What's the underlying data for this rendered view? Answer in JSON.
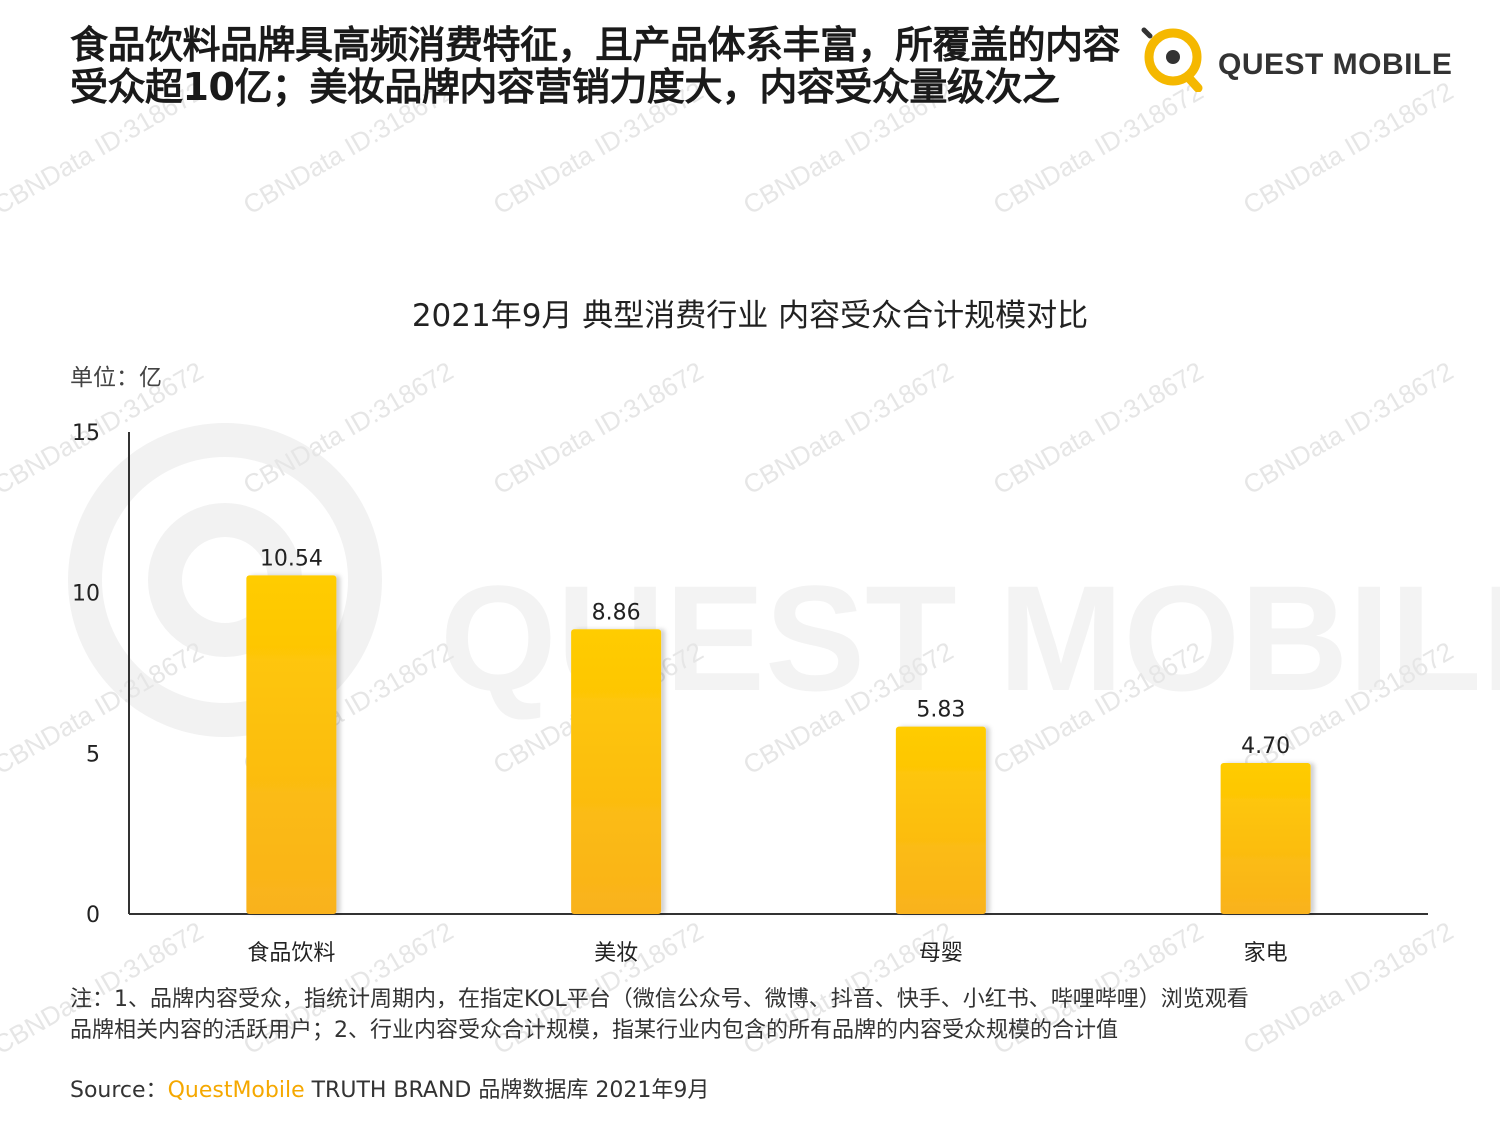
{
  "headline": {
    "line1": "食品饮料品牌具高频消费特征，且产品体系丰富，所覆盖的内容",
    "line2": "受众超10亿；美妆品牌内容营销力度大，内容受众量级次之"
  },
  "logo": {
    "text": "QUEST MOBILE",
    "accent_color": "#f5b800"
  },
  "watermark": {
    "text": "CBNData ID:318672",
    "background_text": "QUEST MOBILE"
  },
  "chart_data": {
    "type": "bar",
    "title": "2021年9月 典型消费行业 内容受众合计规模对比",
    "unit": "单位：亿",
    "categories": [
      "食品饮料",
      "美妆",
      "母婴",
      "家电"
    ],
    "values": [
      10.54,
      8.86,
      5.83,
      4.7
    ],
    "value_labels": [
      "10.54",
      "8.86",
      "5.83",
      "4.70"
    ],
    "ylim": [
      0,
      15
    ],
    "yticks": [
      "0",
      "5",
      "10",
      "15"
    ],
    "ytick_values": [
      0,
      5,
      10,
      15
    ],
    "grid": false,
    "bar_color_top": "#ffcc00",
    "bar_color_bottom": "#f9b21c"
  },
  "note": {
    "line1": "注：1、品牌内容受众，指统计周期内，在指定KOL平台（微信公众号、微博、抖音、快手、小红书、哔哩哔哩）浏览观看",
    "line2": "品牌相关内容的活跃用户；2、行业内容受众合计规模，指某行业内包含的所有品牌的内容受众规模的合计值"
  },
  "source": {
    "prefix": "Source：",
    "brand": "QuestMobile",
    "suffix": " TRUTH BRAND 品牌数据库 2021年9月"
  }
}
